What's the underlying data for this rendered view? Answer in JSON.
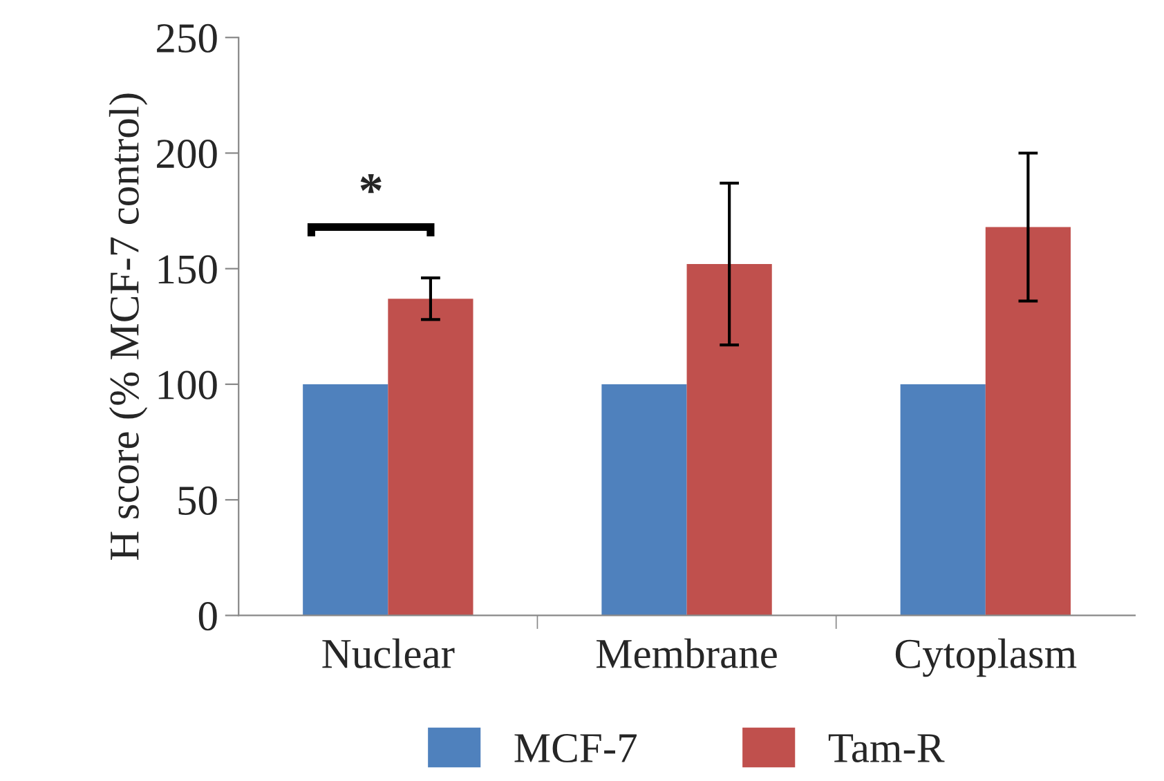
{
  "chart_data": {
    "type": "bar",
    "ylabel": "H score (% MCF-7 control)",
    "categories": [
      "Nuclear",
      "Membrane",
      "Cytoplasm"
    ],
    "series": [
      {
        "name": "MCF-7",
        "color": "#4f81bd",
        "values": [
          100,
          100,
          100
        ]
      },
      {
        "name": "Tam-R",
        "color": "#c0504d",
        "values": [
          137,
          152,
          168
        ],
        "errors": [
          9,
          35,
          32
        ]
      }
    ],
    "ylim": [
      0,
      250
    ],
    "yticks": [
      0,
      50,
      100,
      150,
      200,
      250
    ],
    "grid": false,
    "legend": "bottom",
    "annotations": [
      "*"
    ]
  }
}
